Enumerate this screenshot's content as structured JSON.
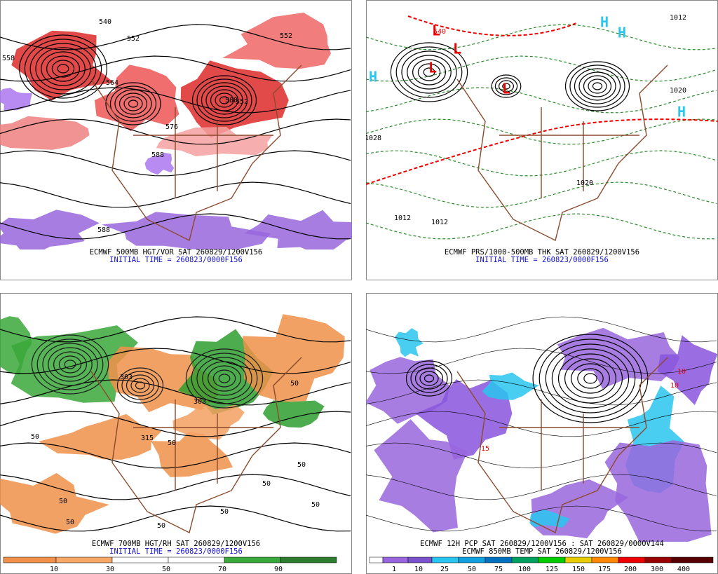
{
  "panels": [
    {
      "caption": "ECMWF 500MB HGT/VOR SAT 260829/1200V156",
      "initial": "INITIAL TIME = 260823/0000F156",
      "labels": [
        "540",
        "552",
        "558",
        "564",
        "576",
        "588",
        "552",
        "552",
        "588",
        "588"
      ]
    },
    {
      "caption": "ECMWF PRS/1000-500MB THK SAT 260829/1200V156",
      "initial": "INITIAL TIME = 260823/0000F156",
      "labels": [
        "L",
        "L",
        "L",
        "L",
        "H",
        "H",
        "H",
        "H",
        "1012",
        "1012",
        "1020",
        "1028",
        "1020",
        "1012",
        "540"
      ]
    },
    {
      "caption": "ECMWF 700MB HGT/RH SAT 260829/1200V156",
      "initial": "INITIAL TIME = 260823/0000F156",
      "labels": [
        "303",
        "303",
        "315",
        "50",
        "50",
        "50",
        "50",
        "50",
        "50",
        "50",
        "50",
        "50",
        "50"
      ],
      "colorbar_labels": [
        "10",
        "30",
        "50",
        "70",
        "90"
      ]
    },
    {
      "caption": "ECMWF 12H PCP SAT 260829/1200V156 : SAT 260829/0000V144",
      "initial": "ECMWF 850MB TEMP SAT 260829/1200V156",
      "labels": [
        "10",
        "10",
        "15"
      ],
      "colorbar_labels": [
        "1",
        "10",
        "25",
        "50",
        "75",
        "100",
        "125",
        "150",
        "175",
        "200",
        "300",
        "400"
      ]
    }
  ]
}
